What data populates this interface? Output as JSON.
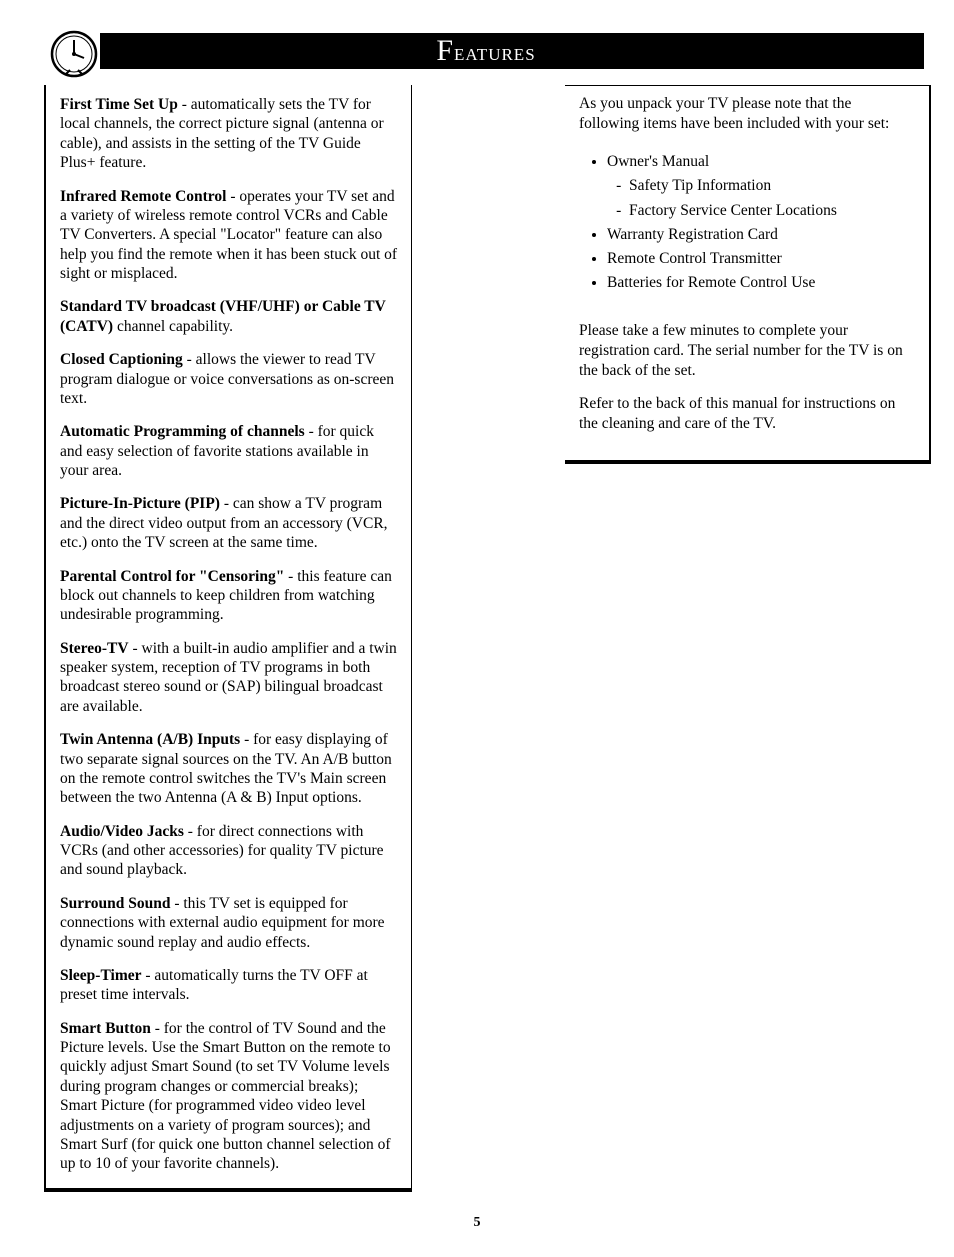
{
  "header": {
    "title": "Features"
  },
  "page_number": "5",
  "left_column": {
    "items": [
      {
        "lead": "First Time Set Up",
        "body": " - automatically sets the TV for local channels, the correct picture signal (antenna or cable), and assists in the setting of the TV Guide Plus+ feature."
      },
      {
        "lead": "Infrared Remote Control",
        "body": " - operates your TV set and a variety of wireless remote control VCRs and Cable TV Converters. A special \"Locator\" feature can also help you find the remote when it has been stuck out of sight or misplaced."
      },
      {
        "lead": "Standard TV broadcast (VHF/UHF) or Cable TV (CATV)",
        "body": " channel capability."
      },
      {
        "lead": "Closed Captioning",
        "body": " - allows the viewer to read TV program dialogue or voice conversations as on-screen text."
      },
      {
        "lead": "Automatic Programming of channels",
        "body": " - for quick and easy selection of favorite stations available in your area."
      },
      {
        "lead": "Picture-In-Picture (PIP)",
        "body": " - can show a TV program and the direct video output from an accessory (VCR, etc.) onto the TV screen at the same time."
      },
      {
        "lead": "Parental Control for \"Censoring\"",
        "body": " - this feature can block out channels to keep children from watching undesirable programming."
      },
      {
        "lead": "Stereo-TV",
        "body": " - with a built-in audio amplifier and a twin speaker system, reception of TV programs in both broadcast stereo sound or (SAP) bilingual broadcast are available."
      },
      {
        "lead": "Twin Antenna (A/B) Inputs",
        "body": " - for easy displaying of two separate signal sources on the TV.  An A/B button on the remote control switches the TV's Main screen between the two Antenna (A & B) Input options."
      },
      {
        "lead": "Audio/Video Jacks",
        "body": " - for direct connections with VCRs (and other accessories) for quality TV picture and sound playback."
      },
      {
        "lead": "Surround Sound",
        "body": " - this TV set is equipped for connections with external audio equipment for more dynamic sound replay and audio effects."
      },
      {
        "lead": "Sleep-Timer",
        "body": " - automatically turns the TV OFF at preset time intervals."
      },
      {
        "lead": "Smart Button",
        "body": " - for the control of TV Sound and the Picture levels. Use the Smart Button on the remote to quickly adjust Smart Sound (to set TV Volume levels during program changes or commercial breaks); Smart Picture (for programmed video video level adjustments on a variety of program sources); and Smart Surf (for quick one button channel selection of up to 10 of your favorite channels)."
      }
    ]
  },
  "right_column": {
    "intro": "As you unpack your TV please note that the following items have been included with your set:",
    "bullets": [
      {
        "text": "Owner's Manual",
        "sub": [
          "Safety Tip Information",
          "Factory Service Center Locations"
        ]
      },
      {
        "text": "Warranty Registration Card"
      },
      {
        "text": "Remote Control Transmitter"
      },
      {
        "text": "Batteries for Remote Control Use"
      }
    ],
    "para1": "Please take a few minutes to complete your registration card. The serial number for the TV is on the back of the set.",
    "para2": "Refer to the back of this manual for instructions on the cleaning and care of the TV."
  }
}
